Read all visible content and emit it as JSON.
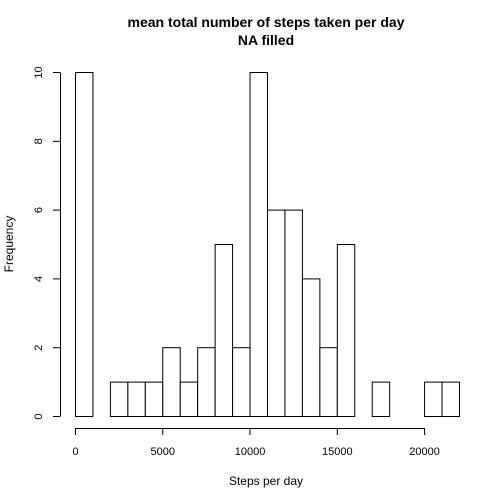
{
  "chart_data": {
    "type": "bar",
    "title": "mean total number of steps taken per day",
    "subtitle": "NA filled",
    "xlabel": "Steps per day",
    "ylabel": "Frequency",
    "bin_width": 1000,
    "x": [
      0,
      1000,
      2000,
      3000,
      4000,
      5000,
      6000,
      7000,
      8000,
      9000,
      10000,
      11000,
      12000,
      13000,
      14000,
      15000,
      16000,
      17000,
      18000,
      19000,
      20000,
      21000
    ],
    "values": [
      10,
      0,
      1,
      1,
      1,
      2,
      1,
      2,
      5,
      2,
      10,
      6,
      6,
      4,
      2,
      5,
      0,
      1,
      0,
      0,
      1,
      1
    ],
    "xlim": [
      0,
      22000
    ],
    "ylim": [
      0,
      10
    ],
    "x_ticks": [
      0,
      5000,
      10000,
      15000,
      20000
    ],
    "y_ticks": [
      0,
      2,
      4,
      6,
      8,
      10
    ],
    "grid": false
  }
}
